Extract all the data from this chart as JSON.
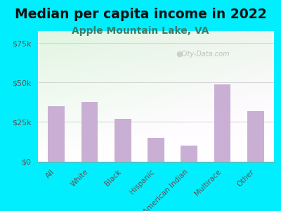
{
  "title": "Median per capita income in 2022",
  "subtitle": "Apple Mountain Lake, VA",
  "categories": [
    "All",
    "White",
    "Black",
    "Hispanic",
    "American Indian",
    "Multirace",
    "Other"
  ],
  "values": [
    35000,
    37500,
    27000,
    15000,
    10000,
    49000,
    32000
  ],
  "bar_color": "#c9afd4",
  "title_fontsize": 13.5,
  "subtitle_fontsize": 10,
  "subtitle_color": "#3a7a6a",
  "title_color": "#111111",
  "background_color": "#00eeff",
  "yticks": [
    0,
    25000,
    50000,
    75000
  ],
  "ylim": [
    0,
    83000
  ],
  "watermark": "City-Data.com",
  "tick_color": "#555555",
  "plot_bg_colors": [
    "#f5fff5",
    "#e5f5e0",
    "#f8fff8"
  ],
  "grid_color": "#cccccc"
}
